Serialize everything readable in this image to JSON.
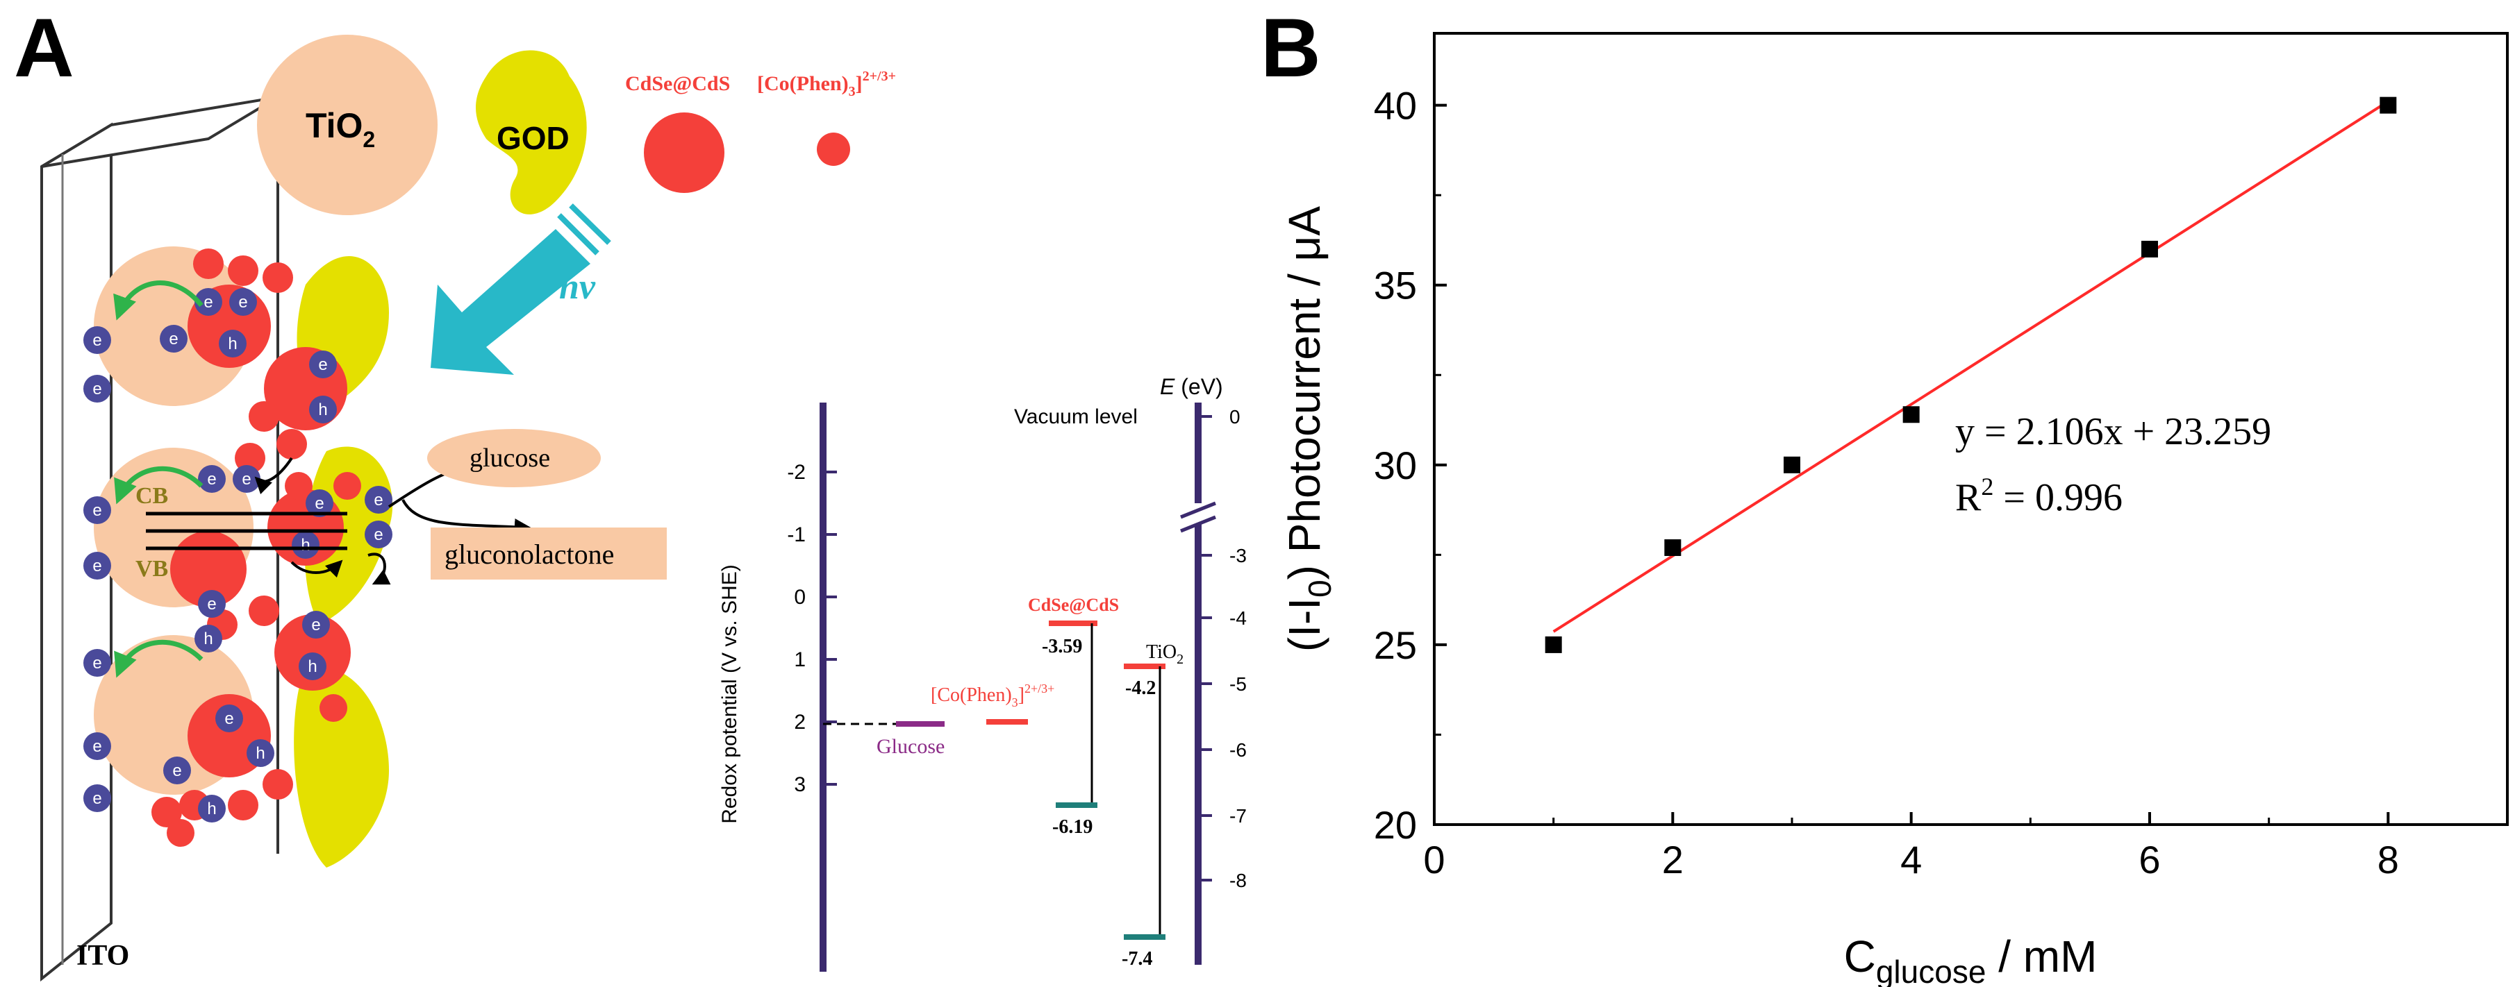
{
  "panel_a": {
    "label": "A",
    "legend": {
      "tio2": "TiO",
      "tio2_sub": "2",
      "god": "GOD",
      "cdse_cds": "CdSe@CdS",
      "co_phen": "[Co(Phen)",
      "co_phen_sub": "3",
      "co_phen_sup": "]",
      "co_phen_charge": "2+/3+"
    },
    "hv": "hv",
    "glucose": "glucose",
    "gluconolactone": "gluconolactone",
    "cb": "CB",
    "vb": "VB",
    "ito": "ITO",
    "electron": "e",
    "hole": "h",
    "energy": {
      "vacuum_level": "Vacuum level",
      "e_axis_label": "E",
      "e_axis_unit": "(eV)",
      "redox_axis_label": "Redox potential (V vs. SHE)",
      "left_ticks": [
        "-2",
        "-1",
        "0",
        "1",
        "2",
        "3"
      ],
      "right_ticks": [
        "0",
        "-3",
        "-4",
        "-5",
        "-6",
        "-7",
        "-8"
      ],
      "cdse_label": "CdSe@CdS",
      "cdse_cb": "-3.59",
      "cdse_vb": "-6.19",
      "tio2_label": "TiO",
      "tio2_label_sub": "2",
      "tio2_cb": "-4.2",
      "tio2_vb": "-7.4",
      "co_label": "[Co(Phen)",
      "co_label_sub": "3",
      "co_label_sup": "]",
      "co_label_charge": "2+/3+",
      "glucose_label": "Glucose"
    },
    "colors": {
      "tio2": "#f9c9a4",
      "god": "#e4e000",
      "cdse": "#f4403a",
      "electron": "#4a4a9a",
      "arrow_green": "#2fb34a",
      "hv_arrow": "#28b8c8",
      "energy_axis": "#3b2a6e",
      "cb_text": "#8a7a1a",
      "teal": "#1f7f7a",
      "purple": "#8b2b87"
    }
  },
  "panel_b": {
    "label": "B",
    "equation": "y = 2.106x + 23.259",
    "r2_prefix": "R",
    "r2_exp": "2",
    "r2_suffix": " = 0.996"
  },
  "chart_data": {
    "type": "scatter",
    "title": "",
    "x": [
      1,
      2,
      3,
      4,
      6,
      8
    ],
    "y": [
      25.0,
      27.7,
      30.0,
      31.4,
      36.0,
      40.0
    ],
    "fit": {
      "slope": 2.106,
      "intercept": 23.259,
      "x_range": [
        1,
        8
      ]
    },
    "xlabel_main": "C",
    "xlabel_sub": "glucose",
    "xlabel_unit": " / mM",
    "ylabel_main": "(I-I",
    "ylabel_sub": "0",
    "ylabel_unit": ") Photocurrent / μA",
    "xlim": [
      0,
      9
    ],
    "ylim": [
      20,
      42
    ],
    "xticks": [
      0,
      2,
      4,
      6,
      8
    ],
    "yticks": [
      20,
      25,
      30,
      35,
      40
    ],
    "marker_color": "#000000",
    "fit_color": "#ff2a2a"
  }
}
